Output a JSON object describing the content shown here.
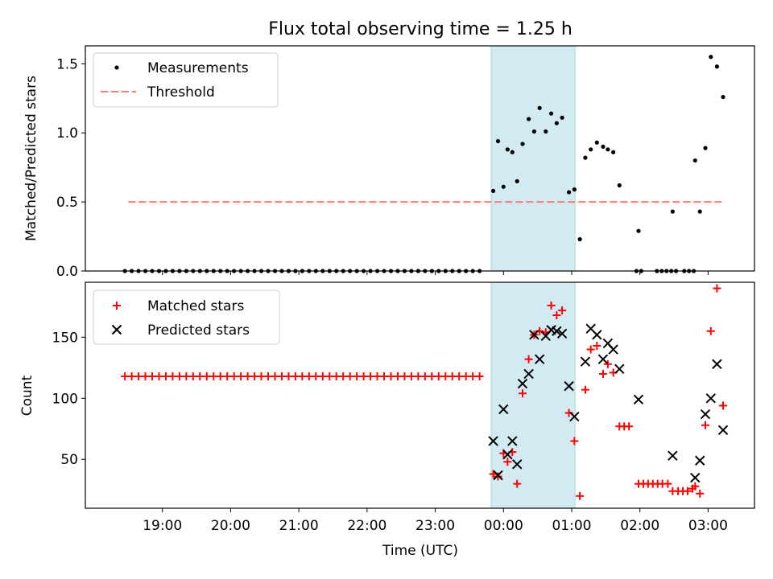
{
  "figure": {
    "title": "Flux total observing time = 1.25 h",
    "xlabel": "Time (UTC)",
    "xticks": [
      {
        "hour": 19,
        "label": "19:00"
      },
      {
        "hour": 20,
        "label": "20:00"
      },
      {
        "hour": 21,
        "label": "21:00"
      },
      {
        "hour": 22,
        "label": "22:00"
      },
      {
        "hour": 23,
        "label": "23:00"
      },
      {
        "hour": 24,
        "label": "00:00"
      },
      {
        "hour": 25,
        "label": "01:00"
      },
      {
        "hour": 26,
        "label": "02:00"
      },
      {
        "hour": 27,
        "label": "03:00"
      }
    ],
    "xlim": [
      17.87,
      27.68
    ],
    "highlight": {
      "start": 23.82,
      "end": 25.05,
      "color": "#add8e6"
    },
    "colors": {
      "measurement": "#000000",
      "threshold": "#ff7b7b",
      "matched": "#ff0000",
      "predicted": "#000000"
    }
  },
  "chart_data": [
    {
      "type": "scatter",
      "ylabel": "Matched/Predicted stars",
      "ylim": [
        0,
        1.63
      ],
      "yticks": [
        0.0,
        0.5,
        1.0,
        1.5
      ],
      "ytick_labels": [
        "0.0",
        "0.5",
        "1.0",
        "1.5"
      ],
      "threshold": {
        "y": 0.5,
        "x": [
          18.5,
          27.25
        ]
      },
      "legend": {
        "position": "top-left",
        "measurements": "Measurements",
        "threshold": "Threshold"
      },
      "zeros": {
        "start": 18.45,
        "step": 0.1,
        "count": 53
      },
      "zero_extra_x": [
        25.95,
        26.02,
        26.25,
        26.32,
        26.39,
        26.46,
        26.53,
        26.65,
        26.72,
        26.79
      ],
      "measurements": [
        [
          23.85,
          0.58
        ],
        [
          23.92,
          0.94
        ],
        [
          24.0,
          0.61
        ],
        [
          24.06,
          0.88
        ],
        [
          24.13,
          0.86
        ],
        [
          24.2,
          0.65
        ],
        [
          24.28,
          0.92
        ],
        [
          24.37,
          1.1
        ],
        [
          24.45,
          1.01
        ],
        [
          24.53,
          1.18
        ],
        [
          24.62,
          1.01
        ],
        [
          24.7,
          1.14
        ],
        [
          24.78,
          1.07
        ],
        [
          24.86,
          1.11
        ],
        [
          24.96,
          0.57
        ],
        [
          25.04,
          0.59
        ],
        [
          25.12,
          0.23
        ],
        [
          25.2,
          0.82
        ],
        [
          25.28,
          0.88
        ],
        [
          25.37,
          0.93
        ],
        [
          25.46,
          0.9
        ],
        [
          25.53,
          0.88
        ],
        [
          25.61,
          0.86
        ],
        [
          25.7,
          0.62
        ],
        [
          25.98,
          0.29
        ],
        [
          26.48,
          0.43
        ],
        [
          26.81,
          0.8
        ],
        [
          26.88,
          0.43
        ],
        [
          26.96,
          0.89
        ],
        [
          27.04,
          1.55
        ],
        [
          27.13,
          1.48
        ],
        [
          27.22,
          1.26
        ]
      ]
    },
    {
      "type": "scatter",
      "ylabel": "Count",
      "ylim": [
        10,
        195
      ],
      "yticks": [
        50,
        100,
        150
      ],
      "ytick_labels": [
        "50",
        "100",
        "150"
      ],
      "legend": {
        "position": "top-left",
        "matched": "Matched stars",
        "predicted": "Predicted stars"
      },
      "matched_flat": {
        "start": 18.45,
        "step": 0.1,
        "count": 53,
        "value": 118
      },
      "matched_series": [
        [
          23.85,
          38
        ],
        [
          23.92,
          36
        ],
        [
          24.0,
          55
        ],
        [
          24.06,
          48
        ],
        [
          24.13,
          56
        ],
        [
          24.2,
          30
        ],
        [
          24.28,
          104
        ],
        [
          24.37,
          132
        ],
        [
          24.45,
          152
        ],
        [
          24.53,
          155
        ],
        [
          24.62,
          154
        ],
        [
          24.7,
          176
        ],
        [
          24.78,
          168
        ],
        [
          24.86,
          172
        ],
        [
          24.96,
          88
        ],
        [
          25.04,
          65
        ],
        [
          25.12,
          20
        ],
        [
          25.2,
          107
        ],
        [
          25.28,
          140
        ],
        [
          25.37,
          143
        ],
        [
          25.46,
          120
        ],
        [
          25.53,
          128
        ],
        [
          25.61,
          121
        ],
        [
          25.7,
          77
        ],
        [
          25.77,
          77
        ],
        [
          25.84,
          77
        ],
        [
          25.98,
          30
        ],
        [
          26.05,
          30
        ],
        [
          26.12,
          30
        ],
        [
          26.19,
          30
        ],
        [
          26.26,
          30
        ],
        [
          26.33,
          30
        ],
        [
          26.41,
          30
        ],
        [
          26.48,
          24
        ],
        [
          26.56,
          24
        ],
        [
          26.63,
          24
        ],
        [
          26.7,
          24
        ],
        [
          26.77,
          26
        ],
        [
          26.81,
          28
        ],
        [
          26.88,
          22
        ],
        [
          26.96,
          78
        ],
        [
          27.04,
          155
        ],
        [
          27.13,
          190
        ],
        [
          27.22,
          94
        ]
      ],
      "predicted_series": [
        [
          23.85,
          65
        ],
        [
          23.92,
          37
        ],
        [
          24.0,
          91
        ],
        [
          24.06,
          54
        ],
        [
          24.13,
          65
        ],
        [
          24.2,
          46
        ],
        [
          24.28,
          112
        ],
        [
          24.37,
          120
        ],
        [
          24.45,
          152
        ],
        [
          24.53,
          132
        ],
        [
          24.62,
          151
        ],
        [
          24.7,
          156
        ],
        [
          24.78,
          155
        ],
        [
          24.86,
          153
        ],
        [
          24.96,
          110
        ],
        [
          25.04,
          85
        ],
        [
          25.2,
          130
        ],
        [
          25.28,
          157
        ],
        [
          25.37,
          152
        ],
        [
          25.46,
          132
        ],
        [
          25.53,
          145
        ],
        [
          25.61,
          140
        ],
        [
          25.7,
          124
        ],
        [
          25.98,
          99
        ],
        [
          26.48,
          53
        ],
        [
          26.81,
          35
        ],
        [
          26.88,
          49
        ],
        [
          26.96,
          87
        ],
        [
          27.04,
          100
        ],
        [
          27.13,
          128
        ],
        [
          27.22,
          74
        ]
      ]
    }
  ]
}
